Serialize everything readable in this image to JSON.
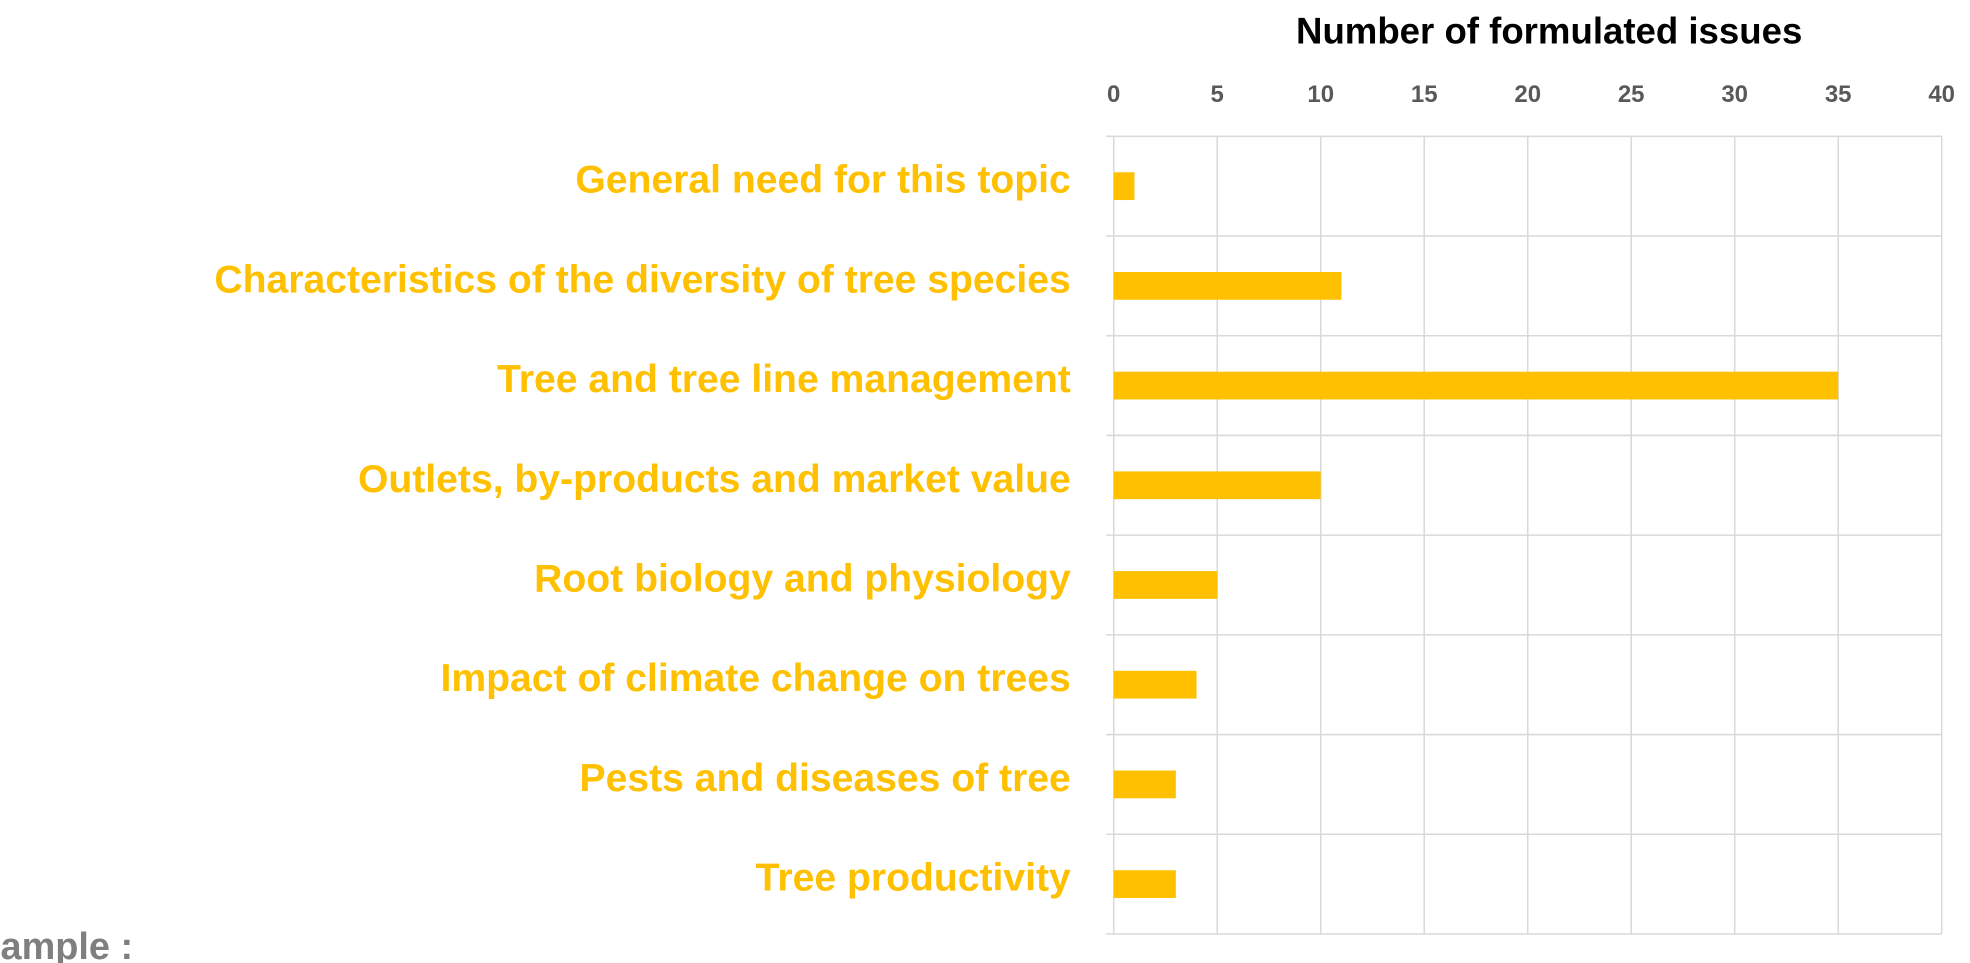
{
  "chart_data": {
    "type": "bar",
    "orientation": "horizontal",
    "title": "Number of formulated issues",
    "categories": [
      "General need for this topic",
      "Characteristics of the diversity of tree species",
      "Tree  and tree line management",
      "Outlets, by-products and market value",
      "Root biology and physiology",
      "Impact of climate change on trees",
      "Pests and diseases of tree",
      "Tree productivity"
    ],
    "values": [
      1,
      11,
      35,
      10,
      5,
      4,
      3,
      3
    ],
    "color": "#FFC000",
    "xlim": [
      0,
      40
    ],
    "xticks": [
      0,
      5,
      10,
      15,
      20,
      25,
      30,
      35,
      40
    ],
    "grid": true
  },
  "footer_text": "ample :"
}
